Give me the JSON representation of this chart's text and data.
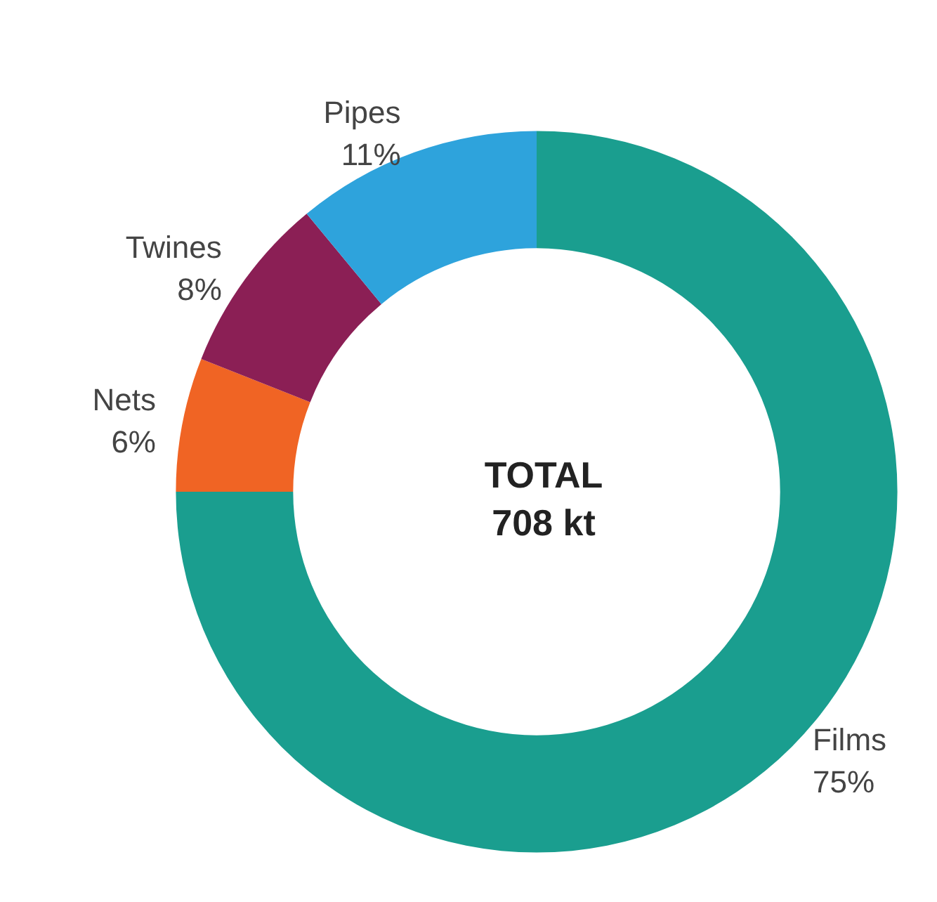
{
  "chart_data": {
    "type": "donut",
    "categories": [
      "Films",
      "Nets",
      "Twines",
      "Pipes"
    ],
    "values": [
      75,
      6,
      8,
      11
    ],
    "value_labels": [
      "75%",
      "6%",
      "8%",
      "11%"
    ],
    "colors": [
      "#1a9e8f",
      "#f06424",
      "#8b1f55",
      "#2ea3dc"
    ],
    "annotations": [
      "TOTAL",
      "708 kt"
    ],
    "legend": false
  }
}
